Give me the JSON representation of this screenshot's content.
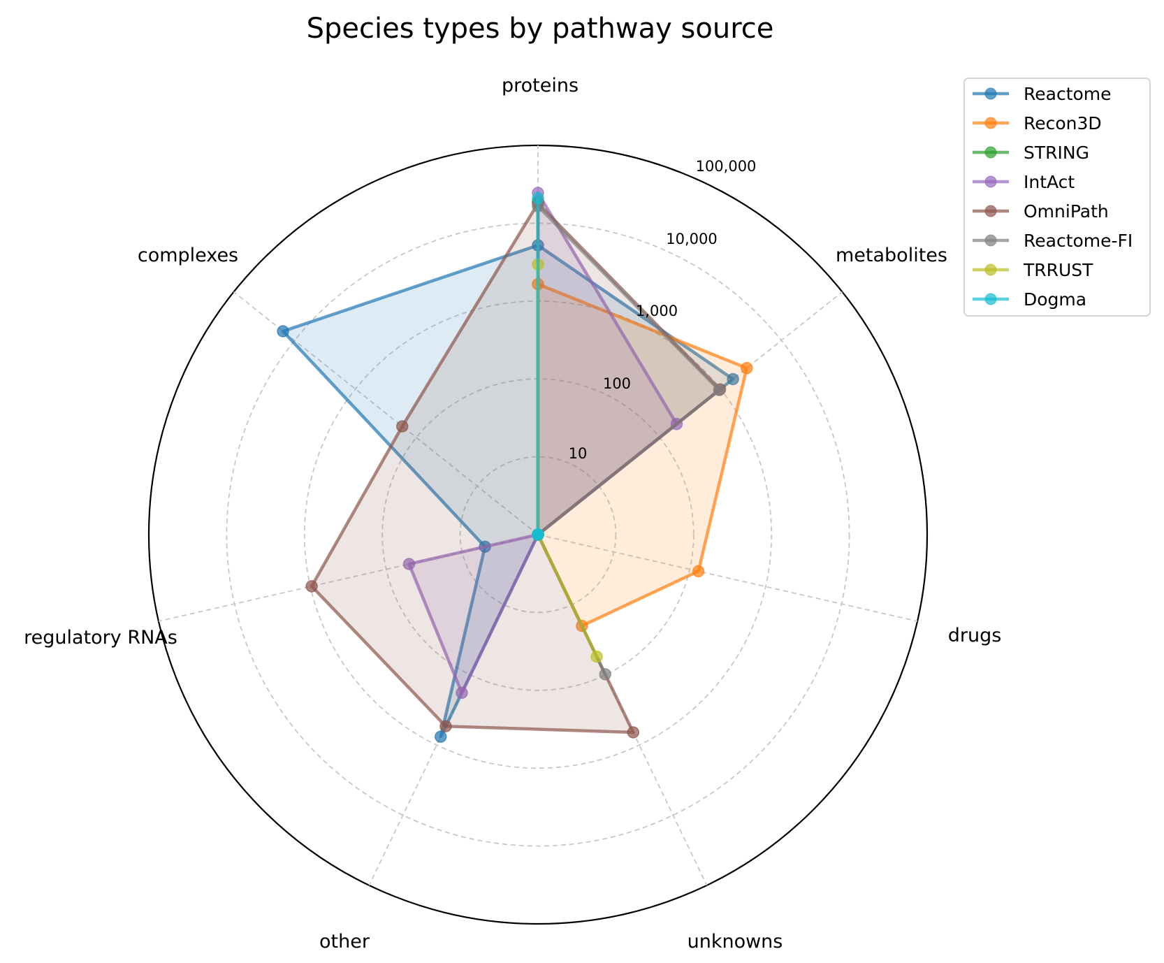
{
  "chart_data": {
    "type": "radar",
    "title": "Species types by pathway source",
    "scale": "log",
    "axes": [
      "proteins",
      "metabolites",
      "drugs",
      "unknowns",
      "other",
      "regulatory RNAs",
      "complexes"
    ],
    "radial_ticks": [
      {
        "value": 10,
        "label": "10"
      },
      {
        "value": 100,
        "label": "100"
      },
      {
        "value": 1000,
        "label": "1,000"
      },
      {
        "value": 10000,
        "label": "10,000"
      },
      {
        "value": 100000,
        "label": "100,000"
      }
    ],
    "rlim": [
      1,
      100000
    ],
    "grid": true,
    "legend_position": "upper-right-outside",
    "series": [
      {
        "name": "Reactome",
        "color": "#1f77b4",
        "filled": true,
        "values": [
          5200,
          1600,
          0,
          0,
          760,
          5,
          15500
        ]
      },
      {
        "name": "Recon3D",
        "color": "#ff7f0e",
        "filled": true,
        "values": [
          1650,
          2700,
          130,
          20,
          0,
          0,
          0
        ]
      },
      {
        "name": "STRING",
        "color": "#2ca02c",
        "filled": false,
        "values": [
          19000,
          0,
          0,
          0,
          0,
          0,
          0
        ]
      },
      {
        "name": "IntAct",
        "color": "#9467bd",
        "filled": true,
        "values": [
          24500,
          190,
          0,
          0,
          180,
          50,
          0
        ]
      },
      {
        "name": "OmniPath",
        "color": "#8c564b",
        "filled": true,
        "values": [
          18000,
          980,
          0,
          660,
          540,
          960,
          170
        ]
      },
      {
        "name": "Reactome-FI",
        "color": "#7f7f7f",
        "filled": false,
        "values": [
          16500,
          950,
          0,
          98,
          0,
          0,
          0
        ]
      },
      {
        "name": "TRRUST",
        "color": "#bcbd22",
        "filled": false,
        "values": [
          2950,
          0,
          0,
          55,
          0,
          0,
          0
        ]
      },
      {
        "name": "Dogma",
        "color": "#17becf",
        "filled": false,
        "values": [
          21000,
          0,
          0,
          0,
          0,
          0,
          0
        ]
      }
    ]
  }
}
